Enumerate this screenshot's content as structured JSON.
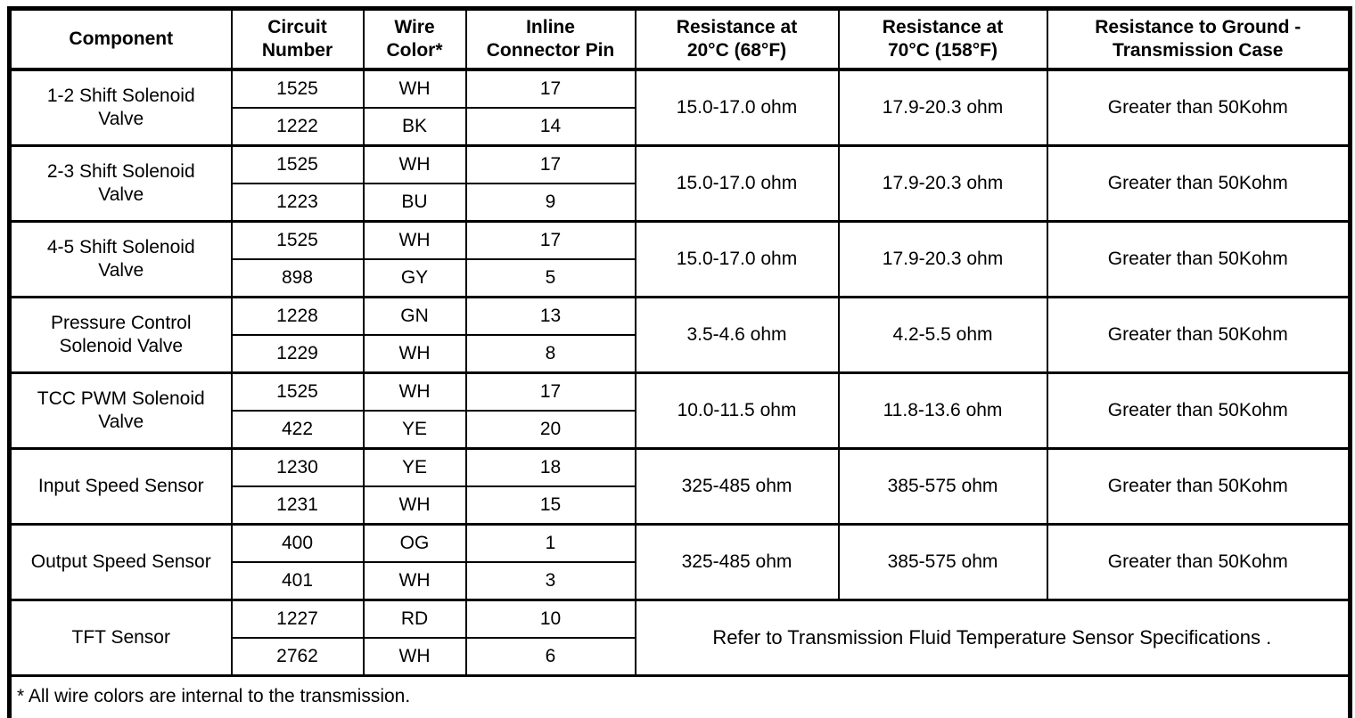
{
  "table": {
    "headers": {
      "component": "Component",
      "circuit_number": "Circuit\nNumber",
      "wire_color": "Wire\nColor*",
      "inline_connector_pin": "Inline\nConnector Pin",
      "resistance_20c": "Resistance at\n20°C (68°F)",
      "resistance_70c": "Resistance at\n70°C (158°F)",
      "resistance_ground": "Resistance to Ground -\nTransmission Case"
    },
    "rows": [
      {
        "component": "1-2 Shift Solenoid\nValve",
        "wires": [
          {
            "circuit": "1525",
            "color": "WH",
            "pin": "17"
          },
          {
            "circuit": "1222",
            "color": "BK",
            "pin": "14"
          }
        ],
        "resistance_20c": "15.0-17.0 ohm",
        "resistance_70c": "17.9-20.3 ohm",
        "resistance_ground": "Greater than 50Kohm"
      },
      {
        "component": "2-3 Shift Solenoid\nValve",
        "wires": [
          {
            "circuit": "1525",
            "color": "WH",
            "pin": "17"
          },
          {
            "circuit": "1223",
            "color": "BU",
            "pin": "9"
          }
        ],
        "resistance_20c": "15.0-17.0 ohm",
        "resistance_70c": "17.9-20.3 ohm",
        "resistance_ground": "Greater than 50Kohm"
      },
      {
        "component": "4-5 Shift Solenoid\nValve",
        "wires": [
          {
            "circuit": "1525",
            "color": "WH",
            "pin": "17"
          },
          {
            "circuit": "898",
            "color": "GY",
            "pin": "5"
          }
        ],
        "resistance_20c": "15.0-17.0 ohm",
        "resistance_70c": "17.9-20.3 ohm",
        "resistance_ground": "Greater than 50Kohm"
      },
      {
        "component": "Pressure Control\nSolenoid Valve",
        "wires": [
          {
            "circuit": "1228",
            "color": "GN",
            "pin": "13"
          },
          {
            "circuit": "1229",
            "color": "WH",
            "pin": "8"
          }
        ],
        "resistance_20c": "3.5-4.6 ohm",
        "resistance_70c": "4.2-5.5 ohm",
        "resistance_ground": "Greater than 50Kohm"
      },
      {
        "component": "TCC PWM Solenoid\nValve",
        "wires": [
          {
            "circuit": "1525",
            "color": "WH",
            "pin": "17"
          },
          {
            "circuit": "422",
            "color": "YE",
            "pin": "20"
          }
        ],
        "resistance_20c": "10.0-11.5 ohm",
        "resistance_70c": "11.8-13.6 ohm",
        "resistance_ground": "Greater than 50Kohm"
      },
      {
        "component": "Input Speed Sensor",
        "wires": [
          {
            "circuit": "1230",
            "color": "YE",
            "pin": "18"
          },
          {
            "circuit": "1231",
            "color": "WH",
            "pin": "15"
          }
        ],
        "resistance_20c": "325-485 ohm",
        "resistance_70c": "385-575 ohm",
        "resistance_ground": "Greater than 50Kohm"
      },
      {
        "component": "Output Speed Sensor",
        "wires": [
          {
            "circuit": "400",
            "color": "OG",
            "pin": "1"
          },
          {
            "circuit": "401",
            "color": "WH",
            "pin": "3"
          }
        ],
        "resistance_20c": "325-485 ohm",
        "resistance_70c": "385-575 ohm",
        "resistance_ground": "Greater than 50Kohm"
      },
      {
        "component": "TFT Sensor",
        "wires": [
          {
            "circuit": "1227",
            "color": "RD",
            "pin": "10"
          },
          {
            "circuit": "2762",
            "color": "WH",
            "pin": "6"
          }
        ],
        "note": "Refer to Transmission Fluid Temperature Sensor Specifications ."
      }
    ],
    "footnote": "* All wire colors are internal to the transmission."
  }
}
